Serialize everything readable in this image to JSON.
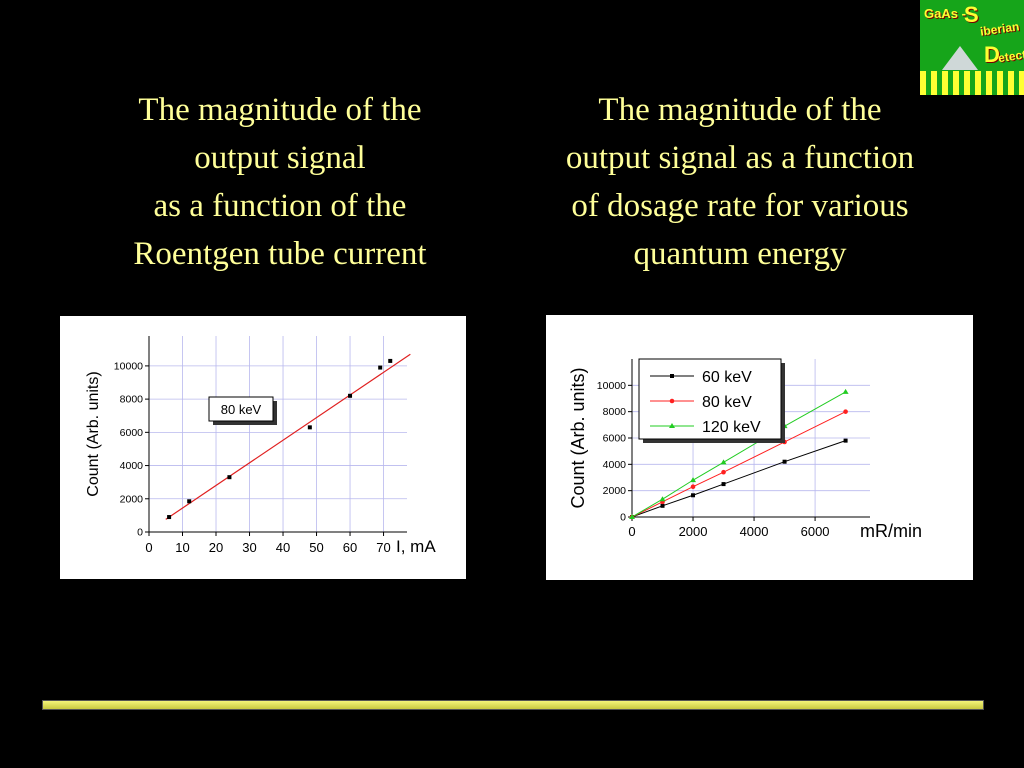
{
  "headings": {
    "left": [
      "The magnitude of the",
      "output signal",
      "as a function of the",
      "Roentgen tube current"
    ],
    "right": [
      "The magnitude of the",
      "output signal as a function",
      "of dosage rate for various",
      "quantum energy"
    ]
  },
  "logo": {
    "line1": "GaAs -",
    "s_letter": "S",
    "word1": "iberian",
    "d_letter": "D",
    "word2": "etectors"
  },
  "chart_data": [
    {
      "type": "scatter",
      "title": "",
      "xlabel": "I, mA",
      "ylabel": "Count (Arb. units)",
      "xlim": [
        0,
        77
      ],
      "ylim": [
        0,
        11800
      ],
      "x_ticks": [
        0,
        10,
        20,
        30,
        40,
        50,
        60,
        70
      ],
      "y_ticks": [
        0,
        2000,
        4000,
        6000,
        8000,
        10000
      ],
      "grid": true,
      "annotation": "80 keV",
      "series": [
        {
          "name": "",
          "color": "#000000",
          "marker": "square",
          "x": [
            6,
            12,
            24,
            48,
            60,
            69,
            72
          ],
          "y": [
            900,
            1850,
            3300,
            6300,
            8200,
            9900,
            10300
          ]
        }
      ],
      "fit_line": {
        "color": "#e02020",
        "x": [
          5,
          78
        ],
        "y": [
          760,
          10700
        ]
      }
    },
    {
      "type": "line",
      "title": "",
      "xlabel": "mR/min",
      "ylabel": "Count (Arb. units)",
      "xlim": [
        0,
        7800
      ],
      "ylim": [
        0,
        12000
      ],
      "x_ticks": [
        0,
        2000,
        4000,
        6000
      ],
      "y_ticks": [
        0,
        2000,
        4000,
        6000,
        8000,
        10000
      ],
      "grid": true,
      "legend": "top-left",
      "series": [
        {
          "name": "60 keV",
          "color": "#000000",
          "marker": "square",
          "x": [
            0,
            1000,
            2000,
            3000,
            5000,
            7000
          ],
          "y": [
            0,
            850,
            1650,
            2500,
            4200,
            5800
          ]
        },
        {
          "name": "80 keV",
          "color": "#ff2020",
          "marker": "circle",
          "x": [
            0,
            1000,
            2000,
            3000,
            5000,
            7000
          ],
          "y": [
            0,
            1150,
            2300,
            3400,
            5700,
            8000
          ]
        },
        {
          "name": "120 keV",
          "color": "#22cc22",
          "marker": "triangle",
          "x": [
            0,
            1000,
            2000,
            3000,
            5000,
            7000
          ],
          "y": [
            0,
            1350,
            2800,
            4150,
            6900,
            9500
          ]
        }
      ]
    }
  ]
}
